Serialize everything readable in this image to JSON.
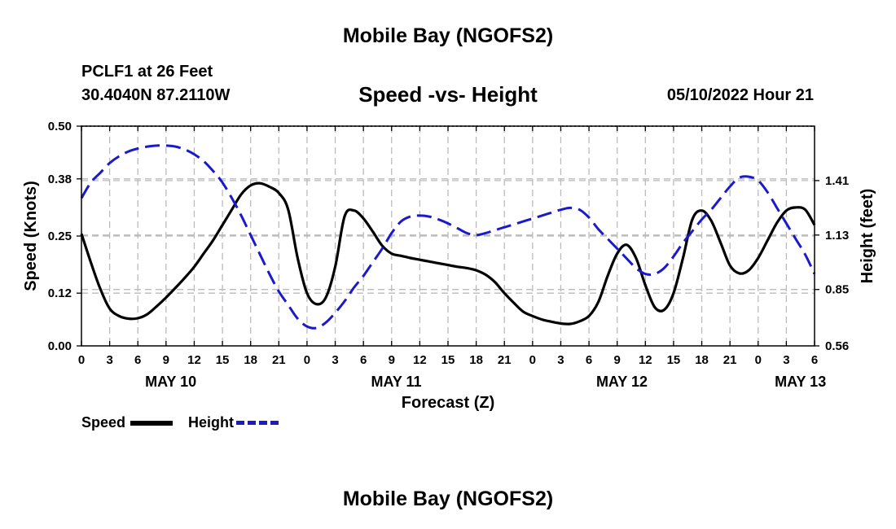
{
  "header": {
    "title": "Mobile Bay (NGOFS2)",
    "station": "PCLF1 at 26 Feet",
    "coords": "30.4040N  87.2110W",
    "subtitle": "Speed -vs- Height",
    "datetime": "05/10/2022 Hour 21"
  },
  "footer": {
    "title": "Mobile Bay (NGOFS2)"
  },
  "legend": {
    "speed_label": "Speed",
    "height_label": "Height"
  },
  "colors": {
    "speed": "#000000",
    "height": "#1a1acc",
    "grid": "#bbbbbb"
  },
  "chart_data": {
    "type": "line",
    "title": "Speed -vs- Height",
    "xlabel": "Forecast (Z)",
    "ylabel": "Speed (Knots)",
    "y2label": "Height (feet)",
    "x_unit": "forecast hours from 00Z May 10",
    "xlim": [
      0,
      78
    ],
    "ylim": [
      0,
      0.5
    ],
    "y2lim": [
      0.56,
      1.69
    ],
    "x_ticks": [
      0,
      3,
      6,
      9,
      12,
      15,
      18,
      21,
      24,
      27,
      30,
      33,
      36,
      39,
      42,
      45,
      48,
      51,
      54,
      57,
      60,
      63,
      66,
      69,
      72,
      75,
      78
    ],
    "x_tick_labels": [
      "0",
      "3",
      "6",
      "9",
      "12",
      "15",
      "18",
      "21",
      "0",
      "3",
      "6",
      "9",
      "12",
      "15",
      "18",
      "21",
      "0",
      "3",
      "6",
      "9",
      "12",
      "15",
      "18",
      "21",
      "0",
      "3",
      "6"
    ],
    "date_labels": [
      {
        "x": 9.5,
        "label": "MAY 10"
      },
      {
        "x": 33.5,
        "label": "MAY 11"
      },
      {
        "x": 57.5,
        "label": "MAY 12"
      },
      {
        "x": 76.5,
        "label": "MAY 13"
      }
    ],
    "y_ticks": [
      0.0,
      0.12,
      0.25,
      0.38,
      0.5
    ],
    "y_tick_labels": [
      "0.00",
      "0.12",
      "0.25",
      "0.38",
      "0.50"
    ],
    "y2_ticks": [
      0.56,
      0.85,
      1.13,
      1.41
    ],
    "y2_tick_labels": [
      "0.56",
      "0.85",
      "1.13",
      "1.41"
    ],
    "grid": true,
    "legend_position": "bottom-left",
    "series": [
      {
        "name": "Speed",
        "axis": "left",
        "style": "solid",
        "x": [
          0,
          1,
          2,
          3,
          4,
          5,
          6,
          7,
          8,
          9,
          10,
          11,
          12,
          13,
          14,
          15,
          16,
          17,
          18,
          19,
          20,
          21,
          22,
          23,
          24,
          25,
          26,
          27,
          28,
          29,
          30,
          31,
          32,
          33,
          34,
          35,
          36,
          37,
          38,
          39,
          40,
          41,
          42,
          43,
          44,
          45,
          46,
          47,
          48,
          49,
          50,
          51,
          52,
          53,
          54,
          55,
          56,
          57,
          58,
          59,
          60,
          61,
          62,
          63,
          64,
          65,
          66,
          67,
          68,
          69,
          70,
          71,
          72,
          73,
          74,
          75,
          76,
          77,
          78
        ],
        "values": [
          0.255,
          0.19,
          0.13,
          0.085,
          0.068,
          0.062,
          0.063,
          0.072,
          0.09,
          0.11,
          0.132,
          0.155,
          0.18,
          0.21,
          0.24,
          0.275,
          0.31,
          0.345,
          0.365,
          0.37,
          0.362,
          0.348,
          0.31,
          0.2,
          0.12,
          0.095,
          0.11,
          0.18,
          0.295,
          0.308,
          0.29,
          0.26,
          0.228,
          0.21,
          0.205,
          0.2,
          0.196,
          0.192,
          0.188,
          0.184,
          0.18,
          0.177,
          0.172,
          0.162,
          0.145,
          0.12,
          0.098,
          0.078,
          0.068,
          0.06,
          0.055,
          0.051,
          0.05,
          0.056,
          0.068,
          0.1,
          0.16,
          0.21,
          0.23,
          0.2,
          0.138,
          0.088,
          0.082,
          0.12,
          0.2,
          0.288,
          0.308,
          0.285,
          0.235,
          0.183,
          0.165,
          0.172,
          0.2,
          0.24,
          0.28,
          0.308,
          0.315,
          0.31,
          0.275
        ]
      },
      {
        "name": "Height",
        "axis": "right",
        "style": "dashed",
        "x": [
          0,
          1,
          2,
          3,
          4,
          5,
          6,
          7,
          8,
          9,
          10,
          11,
          12,
          13,
          14,
          15,
          16,
          17,
          18,
          19,
          20,
          21,
          22,
          23,
          24,
          25,
          26,
          27,
          28,
          29,
          30,
          31,
          32,
          33,
          34,
          35,
          36,
          37,
          38,
          39,
          40,
          41,
          42,
          43,
          44,
          45,
          46,
          47,
          48,
          49,
          50,
          51,
          52,
          53,
          54,
          55,
          56,
          57,
          58,
          59,
          60,
          61,
          62,
          63,
          64,
          65,
          66,
          67,
          68,
          69,
          70,
          71,
          72,
          73,
          74,
          75,
          76,
          77,
          78
        ],
        "values": [
          1.32,
          1.4,
          1.45,
          1.5,
          1.535,
          1.56,
          1.575,
          1.585,
          1.59,
          1.59,
          1.585,
          1.57,
          1.545,
          1.51,
          1.46,
          1.4,
          1.32,
          1.23,
          1.13,
          1.03,
          0.93,
          0.84,
          0.77,
          0.7,
          0.66,
          0.652,
          0.68,
          0.73,
          0.79,
          0.86,
          0.92,
          0.99,
          1.06,
          1.14,
          1.2,
          1.225,
          1.23,
          1.225,
          1.21,
          1.19,
          1.165,
          1.14,
          1.13,
          1.14,
          1.155,
          1.17,
          1.185,
          1.2,
          1.215,
          1.23,
          1.245,
          1.26,
          1.27,
          1.26,
          1.22,
          1.16,
          1.11,
          1.06,
          1.01,
          0.96,
          0.93,
          0.93,
          0.96,
          1.02,
          1.09,
          1.15,
          1.21,
          1.26,
          1.32,
          1.38,
          1.425,
          1.43,
          1.41,
          1.35,
          1.27,
          1.19,
          1.11,
          1.03,
          0.93
        ]
      }
    ]
  }
}
